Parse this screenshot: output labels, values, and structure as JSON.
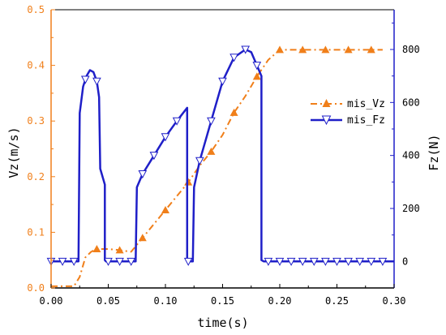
{
  "chart_data": {
    "type": "line",
    "xlabel": "time(s)",
    "ylabel_left": "Vz(m/s)",
    "ylabel_right": "Fz(N)",
    "xlim": [
      0,
      0.3
    ],
    "ylim_left": [
      0,
      0.5
    ],
    "ylim_right": [
      -100,
      950
    ],
    "xticks": [
      "0.00",
      "0.05",
      "0.10",
      "0.15",
      "0.20",
      "0.25",
      "0.30"
    ],
    "yticks_left": [
      "0.0",
      "0.1",
      "0.2",
      "0.3",
      "0.4",
      "0.5"
    ],
    "yticks_right": [
      "0",
      "200",
      "400",
      "600",
      "800"
    ],
    "legend_position": "right-middle",
    "colors": {
      "Vz": "#f07f1a",
      "Fz": "#1f1fc8",
      "left_axis": "#f07f1a",
      "right_axis": "#1f1fc8",
      "bottom_axis": "#000000"
    },
    "series": [
      {
        "name": "mis_Vz",
        "axis": "left",
        "style": "dash-dot",
        "marker": "triangle-up",
        "x": [
          0,
          0.02,
          0.025,
          0.03,
          0.035,
          0.04,
          0.05,
          0.06,
          0.07,
          0.08,
          0.09,
          0.1,
          0.11,
          0.12,
          0.13,
          0.14,
          0.15,
          0.16,
          0.17,
          0.18,
          0.19,
          0.2,
          0.22,
          0.24,
          0.26,
          0.28,
          0.29
        ],
        "values": [
          0.003,
          0.003,
          0.02,
          0.055,
          0.065,
          0.07,
          0.07,
          0.068,
          0.065,
          0.09,
          0.115,
          0.14,
          0.165,
          0.19,
          0.22,
          0.245,
          0.275,
          0.315,
          0.345,
          0.38,
          0.41,
          0.428,
          0.428,
          0.428,
          0.428,
          0.428,
          0.428
        ],
        "marker_x": [
          0.04,
          0.06,
          0.08,
          0.1,
          0.12,
          0.14,
          0.16,
          0.18,
          0.2,
          0.22,
          0.24,
          0.26,
          0.28
        ]
      },
      {
        "name": "mis_Fz",
        "axis": "right",
        "style": "solid",
        "marker": "triangle-down",
        "x": [
          0,
          0.024,
          0.025,
          0.028,
          0.031,
          0.034,
          0.037,
          0.04,
          0.042,
          0.043,
          0.047,
          0.047,
          0.048,
          0.048,
          0.074,
          0.074,
          0.075,
          0.08,
          0.09,
          0.1,
          0.11,
          0.119,
          0.119,
          0.12,
          0.12,
          0.124,
          0.125,
          0.13,
          0.14,
          0.15,
          0.16,
          0.17,
          0.175,
          0.18,
          0.184,
          0.184,
          0.186,
          0.186,
          0.3
        ],
        "values": [
          0,
          0,
          560,
          660,
          700,
          722,
          715,
          680,
          620,
          350,
          290,
          5,
          0,
          0,
          0,
          0,
          280,
          330,
          400,
          470,
          530,
          580,
          0,
          0,
          0,
          0,
          280,
          380,
          530,
          680,
          770,
          800,
          790,
          740,
          700,
          5,
          0,
          0,
          0
        ],
        "marker_x": [
          0,
          0.01,
          0.02,
          0.03,
          0.04,
          0.05,
          0.06,
          0.07,
          0.08,
          0.09,
          0.1,
          0.11,
          0.12,
          0.13,
          0.14,
          0.15,
          0.16,
          0.17,
          0.18,
          0.19,
          0.2,
          0.21,
          0.22,
          0.23,
          0.24,
          0.25,
          0.26,
          0.27,
          0.28,
          0.29
        ]
      }
    ]
  }
}
